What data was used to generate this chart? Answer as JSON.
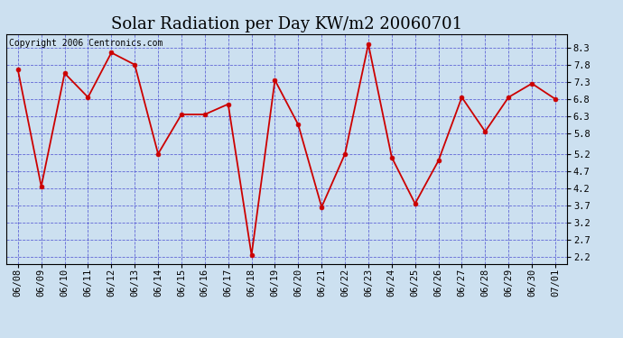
{
  "title": "Solar Radiation per Day KW/m2 20060701",
  "copyright_text": "Copyright 2006 Centronics.com",
  "dates": [
    "06/08",
    "06/09",
    "06/10",
    "06/11",
    "06/12",
    "06/13",
    "06/14",
    "06/15",
    "06/16",
    "06/17",
    "06/18",
    "06/19",
    "06/20",
    "06/21",
    "06/22",
    "06/23",
    "06/24",
    "06/25",
    "06/26",
    "06/27",
    "06/28",
    "06/29",
    "06/30",
    "07/01"
  ],
  "values": [
    7.65,
    4.25,
    7.55,
    6.85,
    8.15,
    7.8,
    5.2,
    6.35,
    6.35,
    6.65,
    2.25,
    7.35,
    6.05,
    3.65,
    5.2,
    8.4,
    5.1,
    3.75,
    5.0,
    6.85,
    5.85,
    6.85,
    7.25,
    6.8
  ],
  "line_color": "#cc0000",
  "marker_color": "#cc0000",
  "bg_color": "#cce0f0",
  "plot_bg_color": "#cce0f0",
  "border_color": "#000000",
  "grid_color": "#3333cc",
  "ylim": [
    2.0,
    8.7
  ],
  "yticks": [
    2.2,
    2.7,
    3.2,
    3.7,
    4.2,
    4.7,
    5.2,
    5.8,
    6.3,
    6.8,
    7.3,
    7.8,
    8.3
  ],
  "title_fontsize": 13,
  "copyright_fontsize": 7,
  "tick_fontsize": 7.5,
  "linewidth": 1.3,
  "markersize": 3.5
}
